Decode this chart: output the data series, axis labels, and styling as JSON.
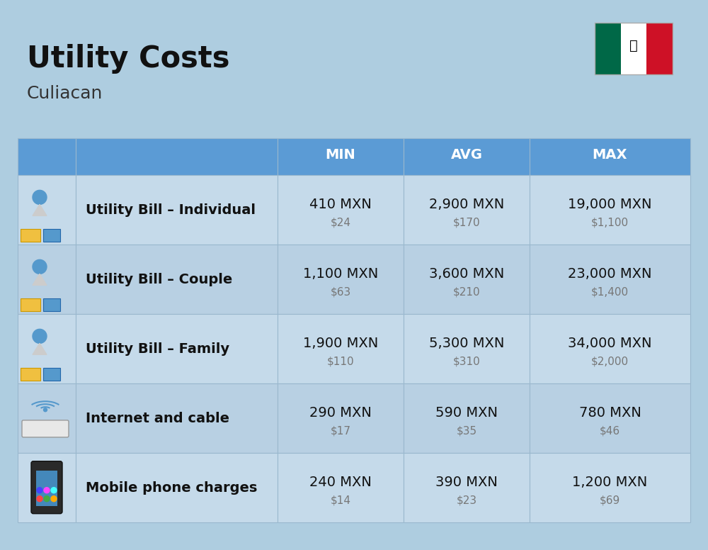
{
  "title": "Utility Costs",
  "subtitle": "Culiacan",
  "background_color": "#aecde0",
  "header_bg_color": "#5b9bd5",
  "header_text_color": "#ffffff",
  "row_bg_color_light": "#c5daea",
  "row_bg_color_dark": "#b8d0e3",
  "cell_border_color": "#9ab8ce",
  "col_headers": [
    "MIN",
    "AVG",
    "MAX"
  ],
  "rows": [
    {
      "label": "Utility Bill – Individual",
      "icon": "utility",
      "min_mxn": "410 MXN",
      "min_usd": "$24",
      "avg_mxn": "2,900 MXN",
      "avg_usd": "$170",
      "max_mxn": "19,000 MXN",
      "max_usd": "$1,100"
    },
    {
      "label": "Utility Bill – Couple",
      "icon": "utility",
      "min_mxn": "1,100 MXN",
      "min_usd": "$63",
      "avg_mxn": "3,600 MXN",
      "avg_usd": "$210",
      "max_mxn": "23,000 MXN",
      "max_usd": "$1,400"
    },
    {
      "label": "Utility Bill – Family",
      "icon": "utility",
      "min_mxn": "1,900 MXN",
      "min_usd": "$110",
      "avg_mxn": "5,300 MXN",
      "avg_usd": "$310",
      "max_mxn": "34,000 MXN",
      "max_usd": "$2,000"
    },
    {
      "label": "Internet and cable",
      "icon": "internet",
      "min_mxn": "290 MXN",
      "min_usd": "$17",
      "avg_mxn": "590 MXN",
      "avg_usd": "$35",
      "max_mxn": "780 MXN",
      "max_usd": "$46"
    },
    {
      "label": "Mobile phone charges",
      "icon": "mobile",
      "min_mxn": "240 MXN",
      "min_usd": "$14",
      "avg_mxn": "390 MXN",
      "avg_usd": "$23",
      "max_mxn": "1,200 MXN",
      "max_usd": "$69"
    }
  ],
  "title_fontsize": 30,
  "subtitle_fontsize": 18,
  "header_fontsize": 14,
  "label_fontsize": 14,
  "value_fontsize": 14,
  "usd_fontsize": 11,
  "flag_colors": [
    "#006847",
    "#ffffff",
    "#ce1126"
  ]
}
